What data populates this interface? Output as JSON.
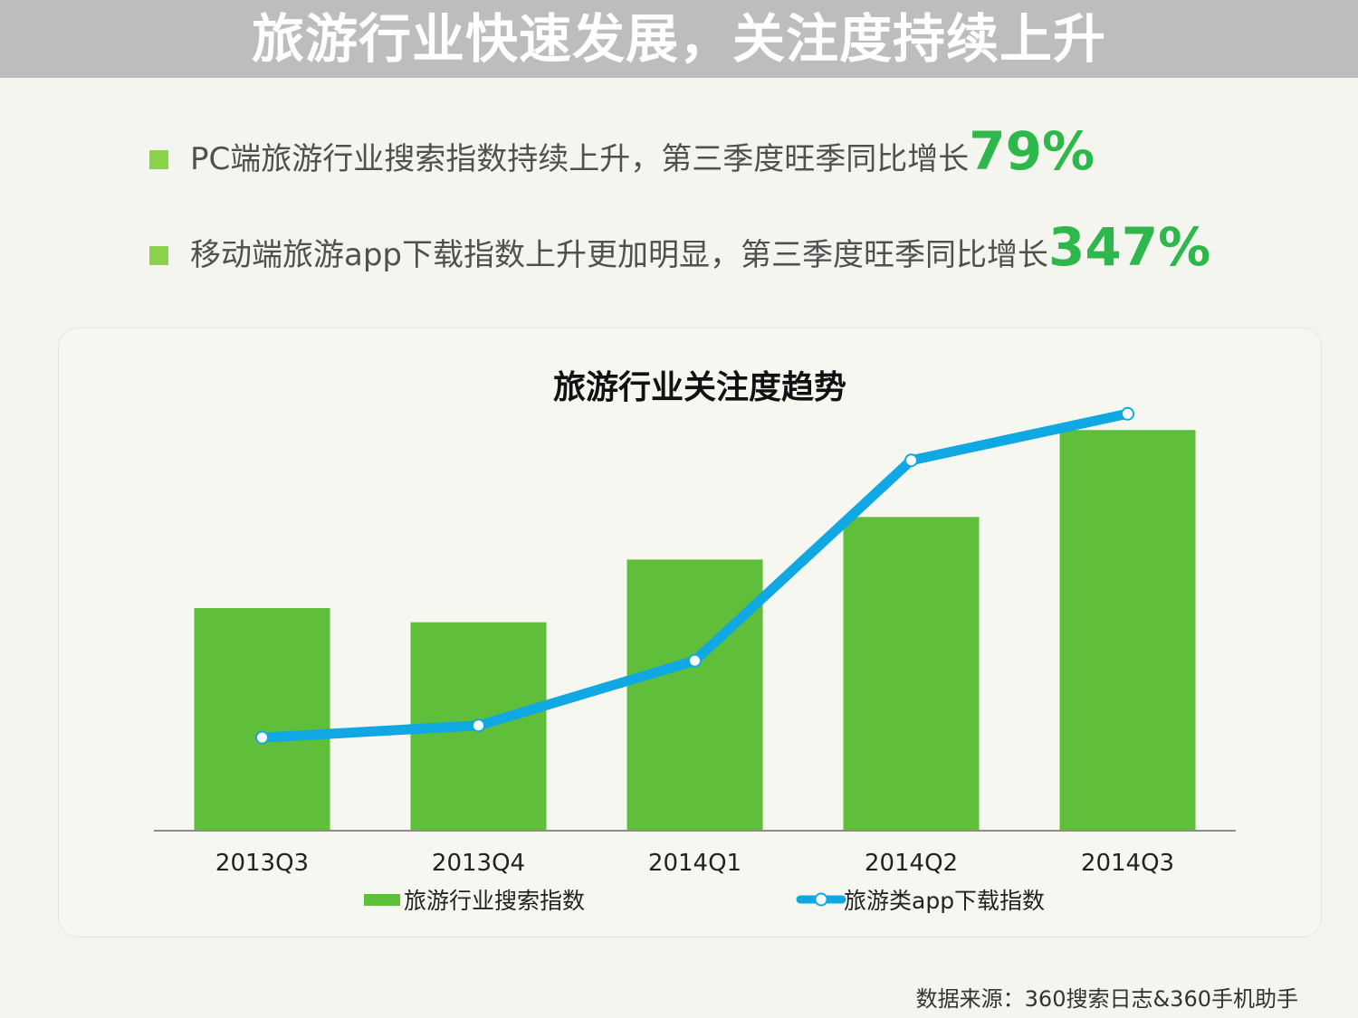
{
  "header": {
    "title": "旅游行业快速发展，关注度持续上升"
  },
  "bullets": [
    {
      "text": "PC端旅游行业搜索指数持续上升，第三季度旺季同比增长",
      "highlight": "79%"
    },
    {
      "text": "移动端旅游app下载指数上升更加明显，第三季度旺季同比增长",
      "highlight": "347%"
    }
  ],
  "colors": {
    "bar": "#5fbe3a",
    "line": "#0fa8e2",
    "highlight": "#2eb84b",
    "bullet": "#8bd24a",
    "banner": "#bdbdbd"
  },
  "chart_data": {
    "type": "bar",
    "title": "旅游行业关注度趋势",
    "categories": [
      "2013Q3",
      "2013Q4",
      "2014Q1",
      "2014Q2",
      "2014Q3"
    ],
    "series": [
      {
        "name": "旅游行业搜索指数",
        "type": "bar",
        "values": [
          55,
          51.5,
          67,
          77.5,
          99
        ]
      },
      {
        "name": "旅游类app下载指数",
        "type": "line",
        "values": [
          23,
          26,
          42,
          91.5,
          103
        ]
      }
    ],
    "ylim": [
      0,
      110
    ],
    "xlabel": "",
    "ylabel": "",
    "legend": "bottom",
    "grid": false
  },
  "footer": {
    "source": "数据来源：360搜索日志&360手机助手"
  }
}
